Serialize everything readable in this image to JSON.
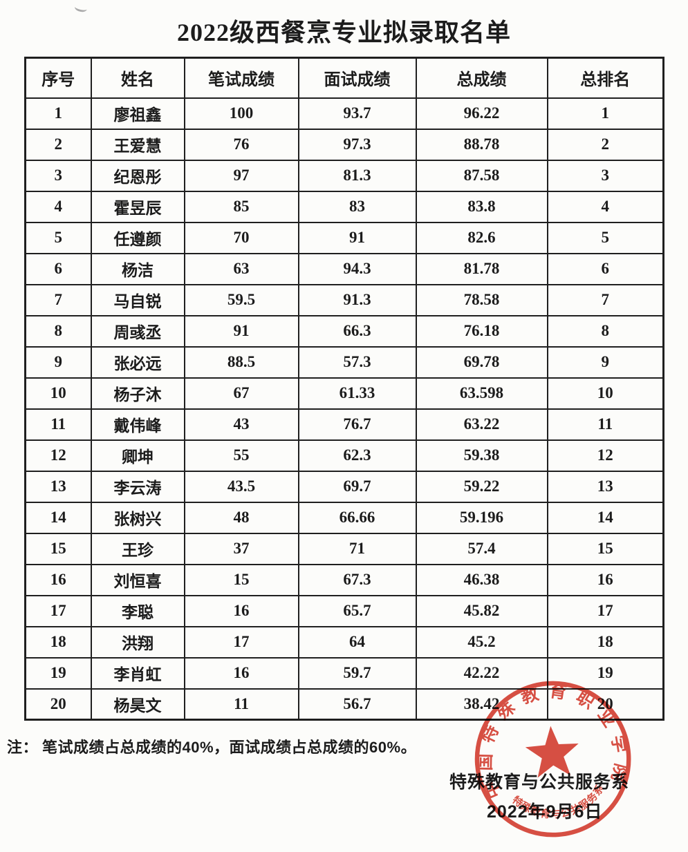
{
  "document": {
    "title": "2022级西餐烹专业拟录取名单",
    "note": {
      "label": "注：",
      "text": "笔试成绩占总成绩的40%，面试成绩占总成绩的60%。"
    },
    "signature": {
      "department": "特殊教育与公共服务系",
      "date": "2022年9月6日"
    },
    "stamp": {
      "outer_text": "中国特殊教育职业学院",
      "inner_text": "特殊教育与公共服务系",
      "color": "#d4382a"
    }
  },
  "table": {
    "columns": [
      "序号",
      "姓名",
      "笔试成绩",
      "面试成绩",
      "总成绩",
      "总排名"
    ],
    "rows": [
      [
        "1",
        "廖祖鑫",
        "100",
        "93.7",
        "96.22",
        "1"
      ],
      [
        "2",
        "王爱慧",
        "76",
        "97.3",
        "88.78",
        "2"
      ],
      [
        "3",
        "纪恩彤",
        "97",
        "81.3",
        "87.58",
        "3"
      ],
      [
        "4",
        "霍昱辰",
        "85",
        "83",
        "83.8",
        "4"
      ],
      [
        "5",
        "任遵颜",
        "70",
        "91",
        "82.6",
        "5"
      ],
      [
        "6",
        "杨洁",
        "63",
        "94.3",
        "81.78",
        "6"
      ],
      [
        "7",
        "马自锐",
        "59.5",
        "91.3",
        "78.58",
        "7"
      ],
      [
        "8",
        "周彧丞",
        "91",
        "66.3",
        "76.18",
        "8"
      ],
      [
        "9",
        "张必远",
        "88.5",
        "57.3",
        "69.78",
        "9"
      ],
      [
        "10",
        "杨子沐",
        "67",
        "61.33",
        "63.598",
        "10"
      ],
      [
        "11",
        "戴伟峰",
        "43",
        "76.7",
        "63.22",
        "11"
      ],
      [
        "12",
        "卿坤",
        "55",
        "62.3",
        "59.38",
        "12"
      ],
      [
        "13",
        "李云涛",
        "43.5",
        "69.7",
        "59.22",
        "13"
      ],
      [
        "14",
        "张树兴",
        "48",
        "66.66",
        "59.196",
        "14"
      ],
      [
        "15",
        "王珍",
        "37",
        "71",
        "57.4",
        "15"
      ],
      [
        "16",
        "刘恒喜",
        "15",
        "67.3",
        "46.38",
        "16"
      ],
      [
        "17",
        "李聪",
        "16",
        "65.7",
        "45.82",
        "17"
      ],
      [
        "18",
        "洪翔",
        "17",
        "64",
        "45.2",
        "18"
      ],
      [
        "19",
        "李肖虹",
        "16",
        "59.7",
        "42.22",
        "19"
      ],
      [
        "20",
        "杨昊文",
        "11",
        "56.7",
        "38.42",
        "20"
      ]
    ]
  }
}
